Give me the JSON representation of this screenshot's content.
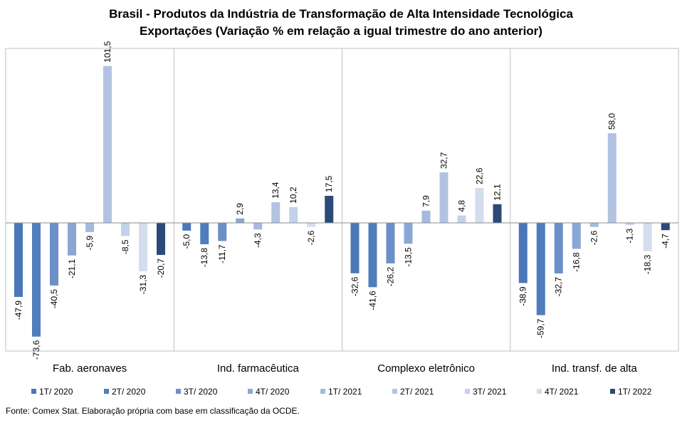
{
  "chart_data": {
    "type": "bar",
    "title": "Brasil - Produtos da Indústria de Transformação  de Alta Intensidade Tecnológica",
    "subtitle": "Exportações  (Variação % em relação a igual trimestre do ano anterior)",
    "categories": [
      "Fab. aeronaves",
      "Ind. farmacêutica",
      "Complexo eletrônico",
      "Ind. transf. de alta"
    ],
    "series": [
      {
        "name": "1T/ 2020",
        "color": "#4a77b8",
        "values": [
          -47.9,
          -5.0,
          -32.6,
          -38.9
        ],
        "labels": [
          "-47,9",
          "-5,0",
          "-32,6",
          "-38,9"
        ]
      },
      {
        "name": "2T/ 2020",
        "color": "#4f7ebd",
        "values": [
          -73.6,
          -13.8,
          -41.6,
          -59.7
        ],
        "labels": [
          "-73,6",
          "-13,8",
          "-41,6",
          "-59,7"
        ]
      },
      {
        "name": "3T/ 2020",
        "color": "#6b8fc7",
        "values": [
          -40.5,
          -11.7,
          -26.2,
          -32.7
        ],
        "labels": [
          "-40,5",
          "-11,7",
          "-26,2",
          "-32,7"
        ]
      },
      {
        "name": "4T/ 2020",
        "color": "#8aa7d4",
        "values": [
          -21.1,
          2.9,
          -13.5,
          -16.8
        ],
        "labels": [
          "-21,1",
          "2,9",
          "-13,5",
          "-16,8"
        ]
      },
      {
        "name": "1T/ 2021",
        "color": "#a4b9dd",
        "values": [
          -5.9,
          -4.3,
          7.9,
          -2.6
        ],
        "labels": [
          "-5,9",
          "-4,3",
          "7,9",
          "-2,6"
        ]
      },
      {
        "name": "2T/ 2021",
        "color": "#b2c3e2",
        "values": [
          101.5,
          13.4,
          32.7,
          58.0
        ],
        "labels": [
          "101,5",
          "13,4",
          "32,7",
          "58,0"
        ]
      },
      {
        "name": "3T/ 2021",
        "color": "#c4d1ea",
        "values": [
          -8.5,
          10.2,
          4.8,
          -1.3
        ],
        "labels": [
          "-8,5",
          "10,2",
          "4,8",
          "-1,3"
        ]
      },
      {
        "name": "4T/ 2021",
        "color": "#d3ddee",
        "values": [
          -31.3,
          -2.6,
          22.6,
          -18.3
        ],
        "labels": [
          "-31,3",
          "-2,6",
          "22,6",
          "-18,3"
        ]
      },
      {
        "name": "1T/ 2022",
        "color": "#2b4a78",
        "values": [
          -20.7,
          17.5,
          12.1,
          -4.7
        ],
        "labels": [
          "-20,7",
          "17,5",
          "12,1",
          "-4,7"
        ]
      }
    ],
    "ylim": [
      -80,
      110
    ],
    "grid": false,
    "legend_position": "bottom",
    "source": "Fonte: Comex Stat. Elaboração própria com base em classificação da OCDE."
  }
}
